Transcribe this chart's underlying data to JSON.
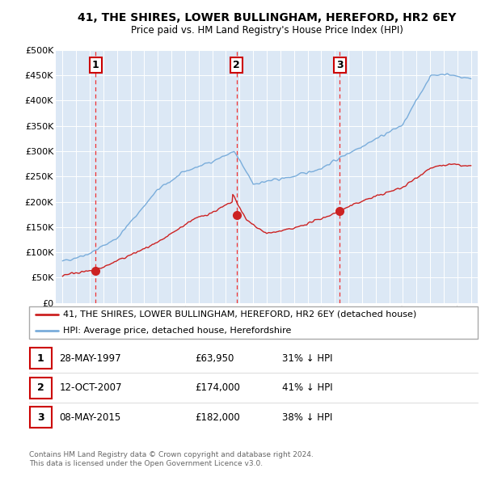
{
  "title": "41, THE SHIRES, LOWER BULLINGHAM, HEREFORD, HR2 6EY",
  "subtitle": "Price paid vs. HM Land Registry's House Price Index (HPI)",
  "footer1": "Contains HM Land Registry data © Crown copyright and database right 2024.",
  "footer2": "This data is licensed under the Open Government Licence v3.0.",
  "legend_line1": "41, THE SHIRES, LOWER BULLINGHAM, HEREFORD, HR2 6EY (detached house)",
  "legend_line2": "HPI: Average price, detached house, Herefordshire",
  "sales": [
    {
      "num": 1,
      "date": "28-MAY-1997",
      "price": 63950,
      "pct": "31%",
      "year": 1997.42
    },
    {
      "num": 2,
      "date": "12-OCT-2007",
      "price": 174000,
      "pct": "41%",
      "year": 2007.78
    },
    {
      "num": 3,
      "date": "08-MAY-2015",
      "price": 182000,
      "pct": "38%",
      "year": 2015.36
    }
  ],
  "table_rows": [
    {
      "num": 1,
      "date": "28-MAY-1997",
      "price": "£63,950",
      "pct": "31% ↓ HPI"
    },
    {
      "num": 2,
      "date": "12-OCT-2007",
      "price": "£174,000",
      "pct": "41% ↓ HPI"
    },
    {
      "num": 3,
      "date": "08-MAY-2015",
      "price": "£182,000",
      "pct": "38% ↓ HPI"
    }
  ],
  "hpi_color": "#7aaddb",
  "price_color": "#cc2222",
  "sale_dot_color": "#cc2222",
  "bg_color": "#dce8f5",
  "grid_color": "#ffffff",
  "dashed_color": "#ee3333",
  "ylim": [
    0,
    500000
  ],
  "xlim": [
    1994.5,
    2025.5
  ]
}
